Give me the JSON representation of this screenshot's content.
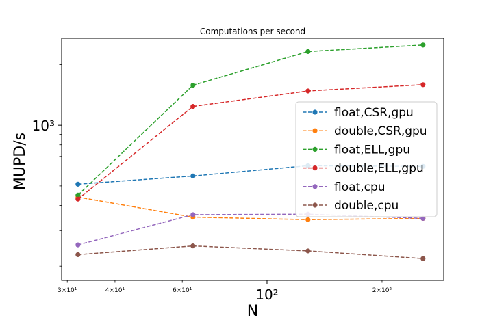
{
  "chart_data": {
    "type": "line",
    "title": "Computations per second",
    "xlabel": "N",
    "ylabel": "MUPD/s",
    "xscale": "log",
    "yscale": "log",
    "xlim": [
      29,
      290
    ],
    "ylim": [
      170,
      2700
    ],
    "grid": false,
    "legend_position": "center-right",
    "x": [
      32,
      64,
      128,
      256
    ],
    "x_ticks": [
      {
        "value": 30,
        "label": "3×10¹",
        "major": false
      },
      {
        "value": 40,
        "label": "4×10¹",
        "major": false
      },
      {
        "value": 60,
        "label": "6×10¹",
        "major": false
      },
      {
        "value": 100,
        "label": "10²",
        "major": true
      },
      {
        "value": 200,
        "label": "2×10²",
        "major": false
      }
    ],
    "y_ticks": [
      {
        "value": 1000,
        "label": "10³",
        "major": true
      }
    ],
    "series": [
      {
        "name": "float,CSR,gpu",
        "color": "#1f77b4",
        "values": [
          510,
          560,
          630,
          625
        ]
      },
      {
        "name": "double,CSR,gpu",
        "color": "#ff7f0e",
        "values": [
          440,
          350,
          340,
          345
        ]
      },
      {
        "name": "float,ELL,gpu",
        "color": "#2ca02c",
        "values": [
          450,
          1580,
          2320,
          2500
        ]
      },
      {
        "name": "double,ELL,gpu",
        "color": "#d62728",
        "values": [
          430,
          1240,
          1480,
          1590
        ]
      },
      {
        "name": "float,cpu",
        "color": "#9467bd",
        "values": [
          255,
          360,
          362,
          345
        ]
      },
      {
        "name": "double,cpu",
        "color": "#8c564b",
        "values": [
          228,
          252,
          238,
          218
        ]
      }
    ]
  }
}
